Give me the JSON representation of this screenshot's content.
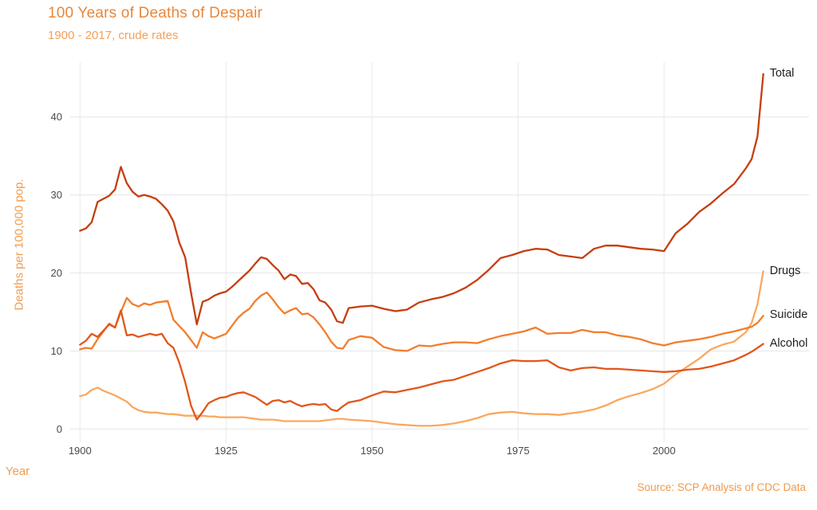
{
  "page": {
    "title": "100 Years of Deaths of Despair",
    "subtitle": "1900 - 2017, crude rates",
    "x_axis_title": "Year",
    "y_axis_title": "Deaths per 100,000 pop.",
    "source": "Source: SCP Analysis of CDC Data"
  },
  "theme": {
    "background": "#FFFFFF",
    "title_color": "#E8873A",
    "subtitle_color": "#F2A159",
    "axis_title_color": "#F29C4F",
    "tick_color": "#4A4A4A",
    "grid_color": "#EBEBEB",
    "series_label_color": "#1F1F1F",
    "source_color": "#F09A4A"
  },
  "chart_data": {
    "type": "line",
    "title": "100 Years of Deaths of Despair",
    "subtitle": "1900 - 2017, crude rates",
    "xlabel": "Year",
    "ylabel": "Deaths per 100,000 pop.",
    "source_note": "Source: SCP Analysis of CDC Data",
    "grid": true,
    "legend_position": "direct-labels-at-line-ends",
    "xlim": [
      1898,
      2023
    ],
    "ylim": [
      0,
      46
    ],
    "xticks": [
      1900,
      1925,
      1950,
      1975,
      2000
    ],
    "yticks": [
      0,
      10,
      20,
      30,
      40
    ],
    "years": [
      1900,
      1901,
      1902,
      1903,
      1904,
      1905,
      1906,
      1907,
      1908,
      1909,
      1910,
      1911,
      1912,
      1913,
      1914,
      1915,
      1916,
      1917,
      1918,
      1919,
      1920,
      1921,
      1922,
      1923,
      1924,
      1925,
      1926,
      1927,
      1928,
      1929,
      1930,
      1931,
      1932,
      1933,
      1934,
      1935,
      1936,
      1937,
      1938,
      1939,
      1940,
      1941,
      1942,
      1943,
      1944,
      1945,
      1946,
      1948,
      1950,
      1952,
      1954,
      1956,
      1958,
      1960,
      1962,
      1964,
      1966,
      1968,
      1970,
      1972,
      1974,
      1976,
      1978,
      1980,
      1982,
      1984,
      1986,
      1988,
      1990,
      1992,
      1994,
      1996,
      1998,
      2000,
      2002,
      2004,
      2006,
      2008,
      2010,
      2012,
      2014,
      2015,
      2016,
      2017
    ],
    "series": [
      {
        "name": "Drugs",
        "color": "#FAA85F",
        "values": [
          4.2,
          4.4,
          5.0,
          5.3,
          4.9,
          4.6,
          4.3,
          3.9,
          3.5,
          2.8,
          2.4,
          2.2,
          2.1,
          2.1,
          2.0,
          1.9,
          1.9,
          1.8,
          1.7,
          1.7,
          1.7,
          1.7,
          1.6,
          1.6,
          1.5,
          1.5,
          1.5,
          1.5,
          1.5,
          1.4,
          1.3,
          1.2,
          1.2,
          1.2,
          1.1,
          1.0,
          1.0,
          1.0,
          1.0,
          1.0,
          1.0,
          1.0,
          1.1,
          1.2,
          1.3,
          1.3,
          1.2,
          1.1,
          1.0,
          0.8,
          0.6,
          0.5,
          0.4,
          0.4,
          0.5,
          0.7,
          1.0,
          1.4,
          1.9,
          2.1,
          2.2,
          2.0,
          1.9,
          1.9,
          1.8,
          2.0,
          2.2,
          2.5,
          3.0,
          3.7,
          4.2,
          4.6,
          5.1,
          5.8,
          7.0,
          8.0,
          9.0,
          10.2,
          10.8,
          11.2,
          12.4,
          13.6,
          16.0,
          20.2
        ]
      },
      {
        "name": "Suicide",
        "color": "#F37D2C",
        "values": [
          10.2,
          10.4,
          10.3,
          11.5,
          12.5,
          13.5,
          13.0,
          15.0,
          16.8,
          16.0,
          15.7,
          16.1,
          15.9,
          16.2,
          16.3,
          16.4,
          14.0,
          13.2,
          12.4,
          11.4,
          10.4,
          12.4,
          11.9,
          11.6,
          11.9,
          12.2,
          13.2,
          14.2,
          14.9,
          15.4,
          16.4,
          17.1,
          17.5,
          16.6,
          15.6,
          14.8,
          15.2,
          15.5,
          14.7,
          14.8,
          14.3,
          13.4,
          12.4,
          11.2,
          10.4,
          10.3,
          11.4,
          11.9,
          11.7,
          10.5,
          10.1,
          10.0,
          10.7,
          10.6,
          10.9,
          11.1,
          11.1,
          11.0,
          11.5,
          11.9,
          12.2,
          12.5,
          13.0,
          12.2,
          12.3,
          12.3,
          12.7,
          12.4,
          12.4,
          12.0,
          11.8,
          11.5,
          11.0,
          10.7,
          11.1,
          11.3,
          11.5,
          11.8,
          12.2,
          12.5,
          12.9,
          13.1,
          13.6,
          14.5
        ]
      },
      {
        "name": "Alcohol",
        "color": "#E2561B",
        "values": [
          10.8,
          11.3,
          12.2,
          11.8,
          12.6,
          13.4,
          13.0,
          15.2,
          12.0,
          12.1,
          11.8,
          12.0,
          12.2,
          12.0,
          12.2,
          11.0,
          10.4,
          8.5,
          6.0,
          3.0,
          1.2,
          2.2,
          3.3,
          3.7,
          4.0,
          4.1,
          4.4,
          4.6,
          4.7,
          4.4,
          4.1,
          3.6,
          3.1,
          3.6,
          3.7,
          3.4,
          3.6,
          3.2,
          2.9,
          3.1,
          3.2,
          3.1,
          3.2,
          2.5,
          2.3,
          2.9,
          3.4,
          3.7,
          4.3,
          4.8,
          4.7,
          5.0,
          5.3,
          5.7,
          6.1,
          6.3,
          6.8,
          7.3,
          7.8,
          8.4,
          8.8,
          8.7,
          8.7,
          8.8,
          7.9,
          7.5,
          7.8,
          7.9,
          7.7,
          7.7,
          7.6,
          7.5,
          7.4,
          7.3,
          7.4,
          7.6,
          7.7,
          8.0,
          8.4,
          8.8,
          9.5,
          9.9,
          10.4,
          10.9
        ]
      },
      {
        "name": "Total",
        "color": "#C53E10",
        "values": [
          25.4,
          25.7,
          26.5,
          29.1,
          29.5,
          29.9,
          30.7,
          33.6,
          31.5,
          30.4,
          29.8,
          30.0,
          29.8,
          29.5,
          28.8,
          28.0,
          26.6,
          23.9,
          22.0,
          17.5,
          13.4,
          16.3,
          16.6,
          17.1,
          17.4,
          17.6,
          18.2,
          18.9,
          19.6,
          20.3,
          21.2,
          22.0,
          21.8,
          21.0,
          20.3,
          19.2,
          19.8,
          19.6,
          18.6,
          18.7,
          17.9,
          16.5,
          16.2,
          15.3,
          13.8,
          13.6,
          15.5,
          15.7,
          15.8,
          15.4,
          15.1,
          15.3,
          16.2,
          16.6,
          16.9,
          17.4,
          18.1,
          19.1,
          20.4,
          21.9,
          22.3,
          22.8,
          23.1,
          23.0,
          22.3,
          22.1,
          21.9,
          23.1,
          23.5,
          23.5,
          23.3,
          23.1,
          23.0,
          22.8,
          25.1,
          26.3,
          27.8,
          28.9,
          30.2,
          31.4,
          33.4,
          34.6,
          37.5,
          45.5
        ]
      }
    ]
  }
}
